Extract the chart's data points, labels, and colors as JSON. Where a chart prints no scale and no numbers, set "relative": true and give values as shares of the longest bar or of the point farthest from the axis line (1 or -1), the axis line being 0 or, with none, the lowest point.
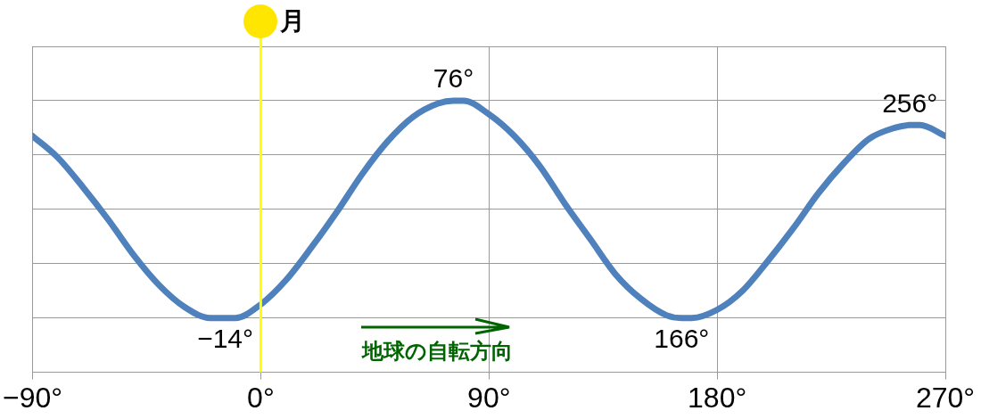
{
  "chart_data": {
    "type": "line",
    "relative": true,
    "x": [
      -90,
      -80,
      -70,
      -60,
      -50,
      -40,
      -30,
      -20,
      -14,
      -10,
      0,
      10,
      20,
      30,
      40,
      50,
      60,
      70,
      76,
      80,
      90,
      100,
      110,
      120,
      130,
      140,
      150,
      160,
      166,
      170,
      180,
      190,
      200,
      210,
      220,
      230,
      240,
      250,
      256,
      260,
      270
    ],
    "series": [
      {
        "color": "#4f81bd",
        "values": [
          0.87,
          0.79,
          0.68,
          0.56,
          0.43,
          0.32,
          0.24,
          0.2,
          0.2,
          0.2,
          0.25,
          0.34,
          0.46,
          0.59,
          0.73,
          0.85,
          0.94,
          0.99,
          1,
          1,
          0.95,
          0.87,
          0.76,
          0.62,
          0.49,
          0.36,
          0.27,
          0.21,
          0.2,
          0.2,
          0.23,
          0.3,
          0.41,
          0.53,
          0.66,
          0.77,
          0.86,
          0.9,
          0.91,
          0.91,
          0.87
        ]
      }
    ],
    "xlim": [
      -90,
      270
    ],
    "xticks": [
      {
        "value": -90,
        "label": "−90°"
      },
      {
        "value": 0,
        "label": "0°"
      },
      {
        "value": 90,
        "label": "90°"
      },
      {
        "value": 180,
        "label": "180°"
      },
      {
        "value": 270,
        "label": "270°"
      }
    ],
    "grid": true,
    "marker": "none",
    "line_style": "solid",
    "legend": false,
    "ref_lines": [
      {
        "axis": "x",
        "value": 0,
        "label": "月",
        "color": "#ffff00"
      }
    ],
    "annotations": [
      {
        "text": "76°",
        "x": 76,
        "y": 1
      },
      {
        "text": "256°",
        "x": 256,
        "y": 0.91
      },
      {
        "text": "−14°",
        "x": -14,
        "y": 0.2
      },
      {
        "text": "166°",
        "x": 166,
        "y": 0.2
      },
      "地球の自転方向"
    ]
  }
}
